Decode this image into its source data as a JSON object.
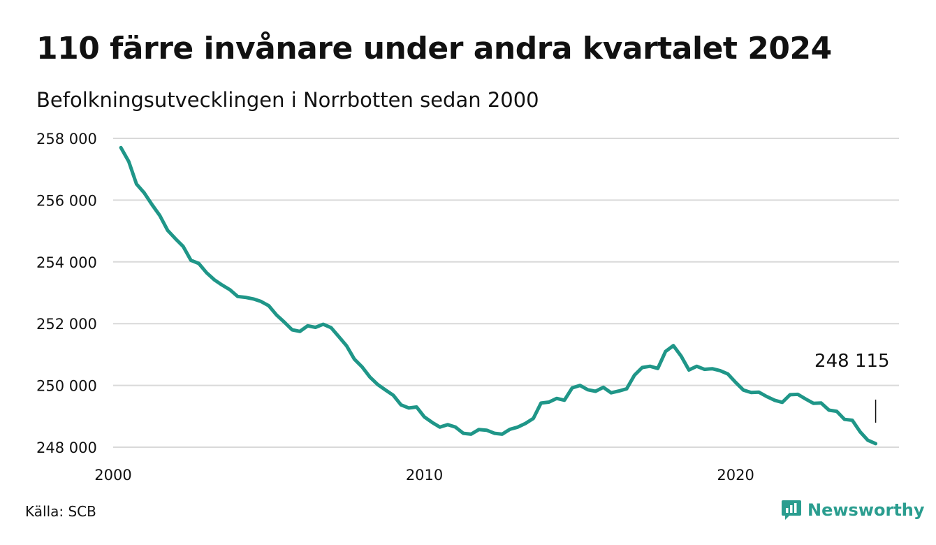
{
  "header": {
    "title": "110 färre invånare under andra kvartalet 2024",
    "subtitle": "Befolkningsutvecklingen i Norrbotten sedan 2000"
  },
  "footer": {
    "source": "Källa: SCB",
    "brand": "Newsworthy",
    "brand_icon": "newsworthy-logo-icon"
  },
  "colors": {
    "line": "#1f9688",
    "grid": "#d9d9d9",
    "text": "#111111",
    "brand": "#2a9d8f"
  },
  "chart_data": {
    "type": "line",
    "title": "110 färre invånare under andra kvartalet 2024",
    "subtitle": "Befolkningsutvecklingen i Norrbotten sedan 2000",
    "xlim": [
      2000,
      2025.25
    ],
    "ylim": [
      248000,
      258000
    ],
    "grid": true,
    "x_ticks": [
      2000,
      2010,
      2020
    ],
    "x_tick_labels": [
      "2000",
      "2010",
      "2020"
    ],
    "y_ticks": [
      248000,
      250000,
      252000,
      254000,
      256000,
      258000
    ],
    "y_tick_labels": [
      "248 000",
      "250 000",
      "252 000",
      "254 000",
      "256 000",
      "258 000"
    ],
    "end_label": "248 115",
    "series": [
      {
        "x": [
          2000.25,
          2000.5,
          2000.75,
          2001.0,
          2001.25,
          2001.5,
          2001.75,
          2002.0,
          2002.25,
          2002.5,
          2002.75,
          2003.0,
          2003.25,
          2003.5,
          2003.75,
          2004.0,
          2004.25,
          2004.5,
          2004.75,
          2005.0,
          2005.25,
          2005.5,
          2005.75,
          2006.0,
          2006.25,
          2006.5,
          2006.75,
          2007.0,
          2007.25,
          2007.5,
          2007.75,
          2008.0,
          2008.25,
          2008.5,
          2008.75,
          2009.0,
          2009.25,
          2009.5,
          2009.75,
          2010.0,
          2010.25,
          2010.5,
          2010.75,
          2011.0,
          2011.25,
          2011.5,
          2011.75,
          2012.0,
          2012.25,
          2012.5,
          2012.75,
          2013.0,
          2013.25,
          2013.5,
          2013.75,
          2014.0,
          2014.25,
          2014.5,
          2014.75,
          2015.0,
          2015.25,
          2015.5,
          2015.75,
          2016.0,
          2016.25,
          2016.5,
          2016.75,
          2017.0,
          2017.25,
          2017.5,
          2017.75,
          2018.0,
          2018.25,
          2018.5,
          2018.75,
          2019.0,
          2019.25,
          2019.5,
          2019.75,
          2020.0,
          2020.25,
          2020.5,
          2020.75,
          2021.0,
          2021.25,
          2021.5,
          2021.75,
          2022.0,
          2022.25,
          2022.5,
          2022.75,
          2023.0,
          2023.25,
          2023.5,
          2023.75,
          2024.0,
          2024.25,
          2024.5
        ],
        "y": [
          257700,
          257250,
          256520,
          256230,
          255850,
          255500,
          255020,
          254750,
          254500,
          254050,
          253950,
          253650,
          253420,
          253250,
          253100,
          252880,
          252850,
          252800,
          252720,
          252580,
          252280,
          252050,
          251800,
          251750,
          251930,
          251880,
          251980,
          251870,
          251580,
          251280,
          250850,
          250600,
          250270,
          250030,
          249850,
          249680,
          249370,
          249270,
          249300,
          248980,
          248800,
          248650,
          248730,
          248650,
          248450,
          248420,
          248570,
          248550,
          248450,
          248420,
          248580,
          248650,
          248770,
          248930,
          249430,
          249460,
          249580,
          249520,
          249920,
          250000,
          249860,
          249810,
          249940,
          249760,
          249820,
          249890,
          250330,
          250580,
          250620,
          250550,
          251100,
          251290,
          250950,
          250500,
          250620,
          250520,
          250540,
          250480,
          250370,
          250100,
          249850,
          249770,
          249780,
          249640,
          249520,
          249450,
          249700,
          249710,
          249560,
          249420,
          249430,
          249200,
          249160,
          248900,
          248870,
          248500,
          248225,
          248115
        ]
      }
    ]
  }
}
